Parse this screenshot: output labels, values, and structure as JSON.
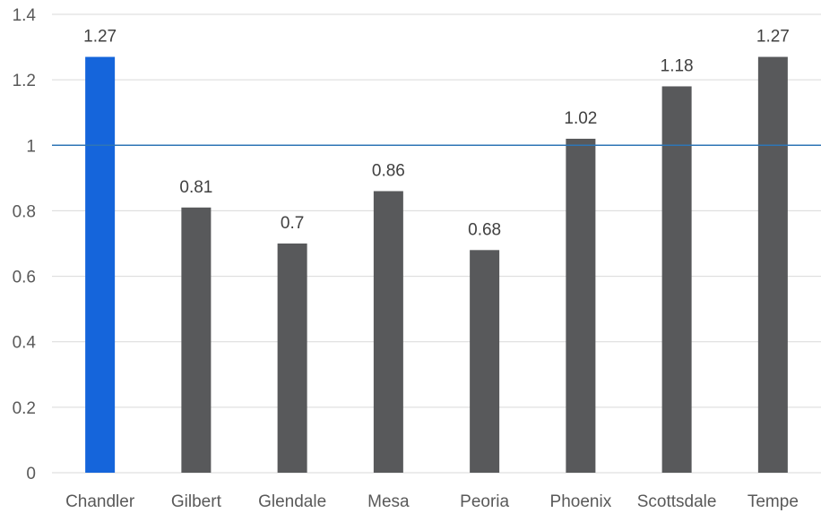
{
  "chart_data": {
    "type": "bar",
    "title": "",
    "xlabel": "",
    "ylabel": "",
    "categories": [
      "Chandler",
      "Gilbert",
      "Glendale",
      "Mesa",
      "Peoria",
      "Phoenix",
      "Scottsdale",
      "Tempe"
    ],
    "values": [
      1.27,
      0.81,
      0.7,
      0.86,
      0.68,
      1.02,
      1.18,
      1.27
    ],
    "value_labels": [
      "1.27",
      "0.81",
      "0.7",
      "0.86",
      "0.68",
      "1.02",
      "1.18",
      "1.27"
    ],
    "ylim": [
      0,
      1.4
    ],
    "yticks": [
      0,
      0.2,
      0.4,
      0.6,
      0.8,
      1,
      1.2,
      1.4
    ],
    "ytick_labels": [
      "0",
      "0.2",
      "0.4",
      "0.6",
      "0.8",
      "1",
      "1.2",
      "1.4"
    ],
    "reference_line": 1,
    "grid": true,
    "legend": "none",
    "highlight_category": "Chandler",
    "colors": {
      "highlight": "#1565db",
      "bar": "#58595b",
      "reference_line": "#2e75b6",
      "grid": "#d9d9d9"
    }
  }
}
